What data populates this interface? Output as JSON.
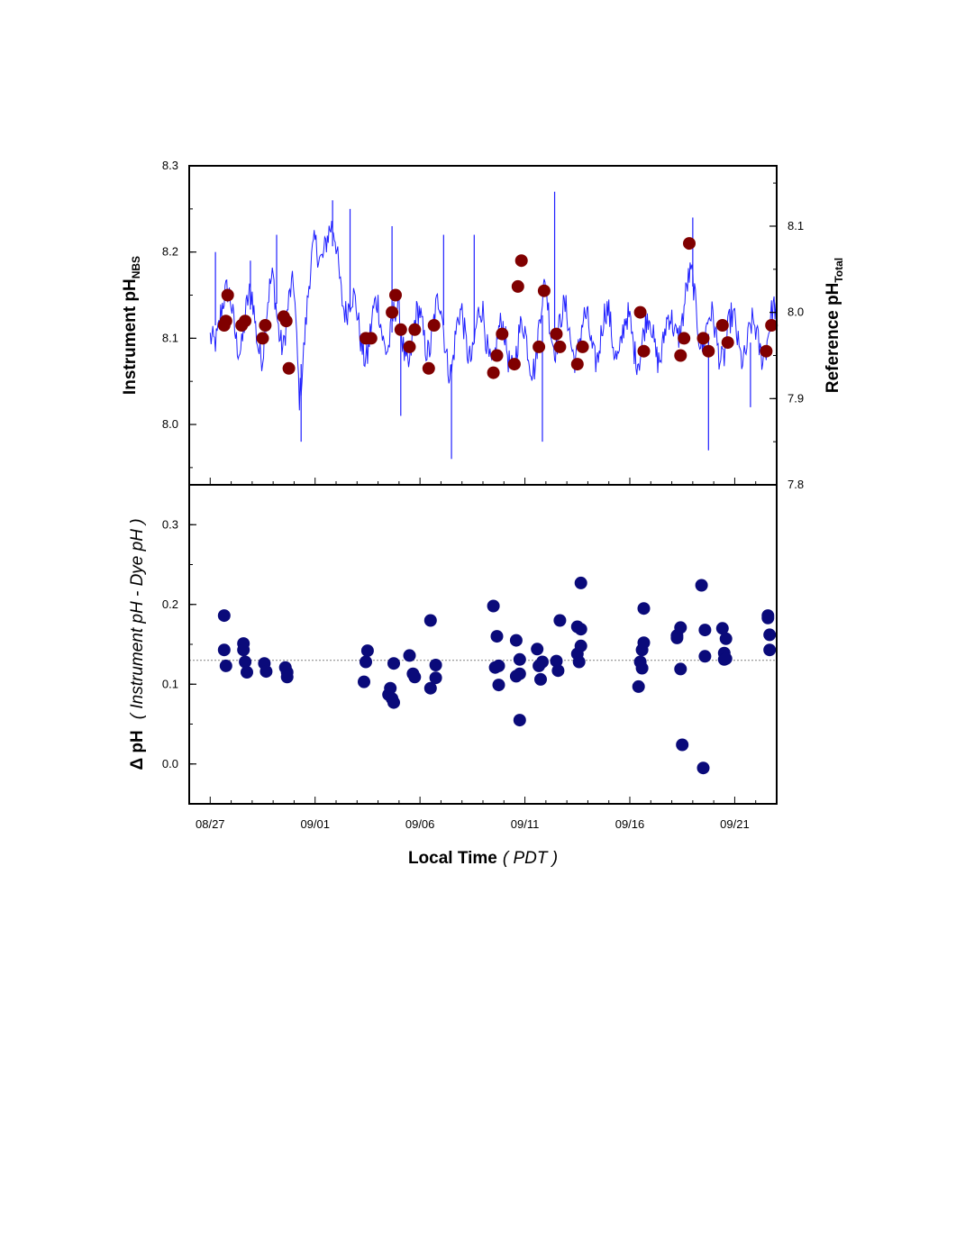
{
  "chart_data": [
    {
      "type": "line",
      "panel": "top",
      "ylabel": {
        "main": "Instrument pH",
        "sub": "NBS"
      },
      "ylabel_right": {
        "main": "Reference pH",
        "sub": "Total"
      },
      "ylim": [
        7.93,
        8.3
      ],
      "yticks": [
        "8.0",
        "8.1",
        "8.2",
        "8.3"
      ],
      "ylim_right": [
        7.8,
        8.17
      ],
      "yticks_right": [
        "7.8",
        "7.9",
        "8.0",
        "8.1"
      ],
      "xlim": [
        "2012-08-26",
        "2012-09-23"
      ],
      "grid": false,
      "colors": {
        "instrument": "#1f1fff",
        "reference": "#800000"
      },
      "series": [
        {
          "style": "line",
          "values": [
            [
              "08/27 00:00",
              8.09
            ],
            [
              "08/27 12:00",
              8.14
            ],
            [
              "08/28 00:00",
              8.13
            ],
            [
              "08/28 12:00",
              8.1
            ],
            [
              "08/29 00:00",
              8.14
            ],
            [
              "08/29 12:00",
              8.09
            ],
            [
              "08/30 00:00",
              8.16
            ],
            [
              "08/30 12:00",
              8.1
            ],
            [
              "08/31 00:00",
              8.15
            ],
            [
              "08/31 06:00",
              8.05
            ],
            [
              "08/31 12:00",
              8.11
            ],
            [
              "09/01 00:00",
              8.2
            ],
            [
              "09/01 12:00",
              8.22
            ],
            [
              "09/02 00:00",
              8.2
            ],
            [
              "09/02 12:00",
              8.14
            ],
            [
              "09/03 00:00",
              8.12
            ],
            [
              "09/03 12:00",
              8.09
            ],
            [
              "09/04 00:00",
              8.13
            ],
            [
              "09/04 12:00",
              8.1
            ],
            [
              "09/05 00:00",
              8.12
            ],
            [
              "09/05 12:00",
              8.08
            ],
            [
              "09/06 00:00",
              8.12
            ],
            [
              "09/06 12:00",
              8.1
            ],
            [
              "09/07 00:00",
              8.13
            ],
            [
              "09/07 12:00",
              8.07
            ],
            [
              "09/08 00:00",
              8.12
            ],
            [
              "09/08 12:00",
              8.09
            ],
            [
              "09/09 00:00",
              8.12
            ],
            [
              "09/09 12:00",
              8.08
            ],
            [
              "09/10 00:00",
              8.1
            ],
            [
              "09/10 12:00",
              8.08
            ],
            [
              "09/11 00:00",
              8.1
            ],
            [
              "09/11 12:00",
              8.08
            ],
            [
              "09/12 00:00",
              8.15
            ],
            [
              "09/12 12:00",
              8.1
            ],
            [
              "09/13 00:00",
              8.12
            ],
            [
              "09/13 12:00",
              8.09
            ],
            [
              "09/14 00:00",
              8.11
            ],
            [
              "09/14 12:00",
              8.09
            ],
            [
              "09/15 00:00",
              8.12
            ],
            [
              "09/15 12:00",
              8.09
            ],
            [
              "09/16 00:00",
              8.11
            ],
            [
              "09/16 12:00",
              8.09
            ],
            [
              "09/17 00:00",
              8.11
            ],
            [
              "09/17 12:00",
              8.09
            ],
            [
              "09/18 00:00",
              8.11
            ],
            [
              "09/18 12:00",
              8.13
            ],
            [
              "09/19 00:00",
              8.16
            ],
            [
              "09/19 12:00",
              8.1
            ],
            [
              "09/20 00:00",
              8.11
            ],
            [
              "09/20 12:00",
              8.09
            ],
            [
              "09/21 00:00",
              8.11
            ],
            [
              "09/21 12:00",
              8.09
            ],
            [
              "09/22 00:00",
              8.1
            ],
            [
              "09/22 12:00",
              8.1
            ],
            [
              "09/23 00:00",
              8.12
            ]
          ],
          "peaks": [
            [
              "08/27 06:00",
              8.2
            ],
            [
              "08/28 22:00",
              8.19
            ],
            [
              "08/30 04:00",
              8.22
            ],
            [
              "08/31 08:00",
              7.98
            ],
            [
              "09/01 20:00",
              8.26
            ],
            [
              "09/02 16:00",
              8.25
            ],
            [
              "09/04 16:00",
              8.23
            ],
            [
              "09/05 02:00",
              8.01
            ],
            [
              "09/07 03:00",
              8.22
            ],
            [
              "09/07 12:00",
              7.96
            ],
            [
              "09/08 14:00",
              8.22
            ],
            [
              "09/11 20:00",
              7.98
            ],
            [
              "09/12 10:00",
              8.27
            ],
            [
              "09/19 00:00",
              8.24
            ],
            [
              "09/19 18:00",
              7.97
            ],
            [
              "09/21 18:00",
              8.02
            ]
          ]
        },
        {
          "style": "markers",
          "axis": "right",
          "values": [
            [
              "08/27 16:00",
              7.985
            ],
            [
              "08/27 18:00",
              7.99
            ],
            [
              "08/27 20:00",
              8.02
            ],
            [
              "08/28 12:00",
              7.985
            ],
            [
              "08/28 16:00",
              7.99
            ],
            [
              "08/29 12:00",
              7.97
            ],
            [
              "08/29 15:00",
              7.985
            ],
            [
              "08/30 12:00",
              7.995
            ],
            [
              "08/30 15:00",
              7.99
            ],
            [
              "08/30 18:00",
              7.935
            ],
            [
              "09/03 10:00",
              7.97
            ],
            [
              "09/03 16:00",
              7.97
            ],
            [
              "09/04 16:00",
              8.0
            ],
            [
              "09/04 20:00",
              8.02
            ],
            [
              "09/05 02:00",
              7.98
            ],
            [
              "09/05 12:00",
              7.96
            ],
            [
              "09/05 18:00",
              7.98
            ],
            [
              "09/06 10:00",
              7.935
            ],
            [
              "09/06 16:00",
              7.985
            ],
            [
              "09/09 12:00",
              7.93
            ],
            [
              "09/09 16:00",
              7.95
            ],
            [
              "09/09 22:00",
              7.975
            ],
            [
              "09/10 12:00",
              7.94
            ],
            [
              "09/10 16:00",
              8.03
            ],
            [
              "09/10 20:00",
              8.06
            ],
            [
              "09/11 16:00",
              7.96
            ],
            [
              "09/11 22:00",
              8.025
            ],
            [
              "09/12 12:00",
              7.975
            ],
            [
              "09/12 16:00",
              7.96
            ],
            [
              "09/13 12:00",
              7.94
            ],
            [
              "09/13 18:00",
              7.96
            ],
            [
              "09/16 12:00",
              8.0
            ],
            [
              "09/16 16:00",
              7.955
            ],
            [
              "09/18 10:00",
              7.95
            ],
            [
              "09/18 14:00",
              7.97
            ],
            [
              "09/18 20:00",
              8.08
            ],
            [
              "09/19 12:00",
              7.97
            ],
            [
              "09/19 18:00",
              7.955
            ],
            [
              "09/20 10:00",
              7.985
            ],
            [
              "09/20 16:00",
              7.965
            ],
            [
              "09/22 12:00",
              7.955
            ],
            [
              "09/22 18:00",
              7.985
            ]
          ]
        }
      ]
    },
    {
      "type": "scatter",
      "panel": "bottom",
      "ylabel": {
        "prefix": "Δ pH",
        "note": "( Instrument pH - Dye pH )"
      },
      "xlabel": {
        "main": "Local Time",
        "note": "( PDT )"
      },
      "ylim": [
        -0.05,
        0.35
      ],
      "yticks": [
        "0.0",
        "0.1",
        "0.2",
        "0.3"
      ],
      "xlim": [
        "2012-08-26",
        "2012-09-23"
      ],
      "xticks": [
        "08/27",
        "09/01",
        "09/06",
        "09/11",
        "09/16",
        "09/21"
      ],
      "reference_line": 0.13,
      "grid": false,
      "colors": {
        "points": "#0a0a7a",
        "reference_line": "#808080"
      },
      "series": [
        {
          "values": [
            [
              "08/27 16:00",
              0.186
            ],
            [
              "08/27 16:00",
              0.143
            ],
            [
              "08/27 18:00",
              0.123
            ],
            [
              "08/28 14:00",
              0.151
            ],
            [
              "08/28 14:00",
              0.143
            ],
            [
              "08/28 16:00",
              0.128
            ],
            [
              "08/28 18:00",
              0.115
            ],
            [
              "08/29 14:00",
              0.126
            ],
            [
              "08/29 16:00",
              0.116
            ],
            [
              "08/30 14:00",
              0.121
            ],
            [
              "08/30 16:00",
              0.115
            ],
            [
              "08/30 16:00",
              0.109
            ],
            [
              "09/03 08:00",
              0.103
            ],
            [
              "09/03 10:00",
              0.128
            ],
            [
              "09/03 12:00",
              0.142
            ],
            [
              "09/04 12:00",
              0.087
            ],
            [
              "09/04 14:00",
              0.095
            ],
            [
              "09/04 16:00",
              0.082
            ],
            [
              "09/04 18:00",
              0.077
            ],
            [
              "09/04 18:00",
              0.126
            ],
            [
              "09/05 12:00",
              0.136
            ],
            [
              "09/05 16:00",
              0.113
            ],
            [
              "09/05 18:00",
              0.109
            ],
            [
              "09/06 12:00",
              0.18
            ],
            [
              "09/06 12:00",
              0.095
            ],
            [
              "09/06 18:00",
              0.124
            ],
            [
              "09/06 18:00",
              0.108
            ],
            [
              "09/09 12:00",
              0.198
            ],
            [
              "09/09 14:00",
              0.121
            ],
            [
              "09/09 16:00",
              0.16
            ],
            [
              "09/09 18:00",
              0.123
            ],
            [
              "09/09 18:00",
              0.099
            ],
            [
              "09/10 14:00",
              0.155
            ],
            [
              "09/10 14:00",
              0.11
            ],
            [
              "09/10 18:00",
              0.131
            ],
            [
              "09/10 18:00",
              0.113
            ],
            [
              "09/10 18:00",
              0.055
            ],
            [
              "09/11 14:00",
              0.144
            ],
            [
              "09/11 16:00",
              0.123
            ],
            [
              "09/11 18:00",
              0.106
            ],
            [
              "09/11 20:00",
              0.128
            ],
            [
              "09/12 12:00",
              0.129
            ],
            [
              "09/12 14:00",
              0.117
            ],
            [
              "09/12 16:00",
              0.18
            ],
            [
              "09/13 12:00",
              0.172
            ],
            [
              "09/13 12:00",
              0.138
            ],
            [
              "09/13 14:00",
              0.128
            ],
            [
              "09/13 16:00",
              0.148
            ],
            [
              "09/13 16:00",
              0.227
            ],
            [
              "09/13 16:00",
              0.169
            ],
            [
              "09/16 10:00",
              0.097
            ],
            [
              "09/16 12:00",
              0.128
            ],
            [
              "09/16 14:00",
              0.12
            ],
            [
              "09/16 14:00",
              0.143
            ],
            [
              "09/16 16:00",
              0.152
            ],
            [
              "09/16 16:00",
              0.195
            ],
            [
              "09/18 06:00",
              0.158
            ],
            [
              "09/18 06:00",
              0.161
            ],
            [
              "09/18 10:00",
              0.171
            ],
            [
              "09/18 10:00",
              0.119
            ],
            [
              "09/18 12:00",
              0.024
            ],
            [
              "09/19 10:00",
              0.224
            ],
            [
              "09/19 12:00",
              -0.005
            ],
            [
              "09/19 14:00",
              0.168
            ],
            [
              "09/19 14:00",
              0.135
            ],
            [
              "09/20 10:00",
              0.17
            ],
            [
              "09/20 12:00",
              0.139
            ],
            [
              "09/20 12:00",
              0.131
            ],
            [
              "09/20 14:00",
              0.157
            ],
            [
              "09/20 14:00",
              0.132
            ],
            [
              "09/22 14:00",
              0.186
            ],
            [
              "09/22 14:00",
              0.183
            ],
            [
              "09/22 16:00",
              0.162
            ],
            [
              "09/22 16:00",
              0.143
            ]
          ]
        }
      ]
    }
  ]
}
